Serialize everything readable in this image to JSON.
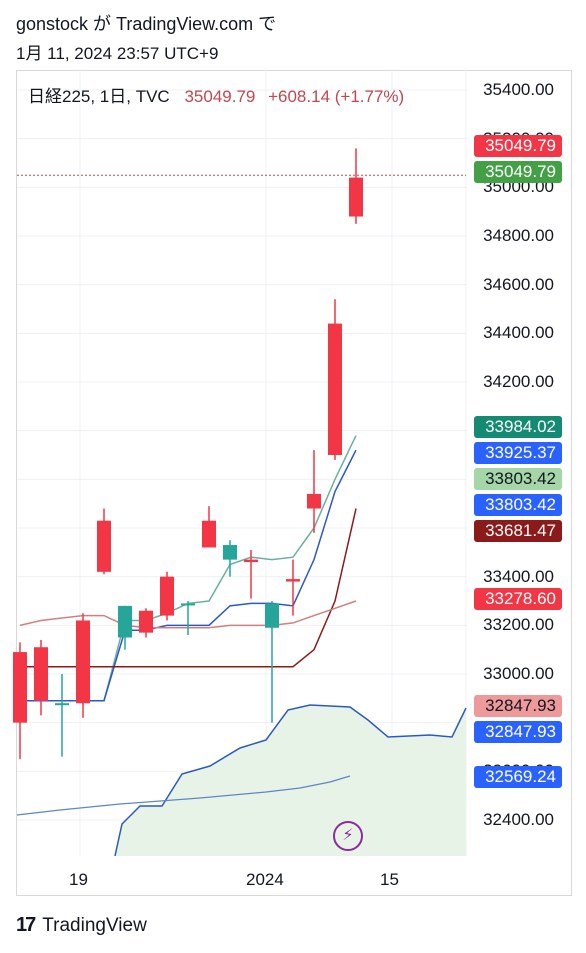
{
  "header": {
    "line1": "gonstock が TradingView.com で",
    "line2": "1月 11, 2024 23:57 UTC+9"
  },
  "legend": {
    "symbol": "日経225, 1日, TVC",
    "value": "35049.79",
    "change": "+608.14 (+1.77%)"
  },
  "footer": {
    "logo_text": "TradingView",
    "logo_icon": "tradingview-logo-icon"
  },
  "alert_icon": "bolt-icon",
  "chart_data": {
    "type": "candlestick",
    "title": "日経225, 1日, TVC",
    "ylim": [
      32240,
      35560
    ],
    "y_ticks": [
      "35400.00",
      "35200.00",
      "35000.00",
      "34800.00",
      "34600.00",
      "34400.00",
      "34200.00",
      "33400.00",
      "33200.00",
      "33000.00",
      "32600.00",
      "32400.00"
    ],
    "x_ticks": [
      "19",
      "2024",
      "15"
    ],
    "colors": {
      "up": "#26a69a",
      "down": "#f23645",
      "kumo": "#e8f3e7"
    },
    "candles": [
      {
        "o": 33090,
        "h": 33130,
        "l": 32650,
        "c": 32800
      },
      {
        "o": 33110,
        "h": 33140,
        "l": 32830,
        "c": 32890
      },
      {
        "o": 32880,
        "h": 33000,
        "l": 32660,
        "c": 32880
      },
      {
        "o": 33220,
        "h": 33250,
        "l": 32820,
        "c": 32880
      },
      {
        "o": 33630,
        "h": 33680,
        "l": 33410,
        "c": 33420
      },
      {
        "o": 33150,
        "h": 33280,
        "l": 33100,
        "c": 33280
      },
      {
        "o": 33260,
        "h": 33270,
        "l": 33150,
        "c": 33170
      },
      {
        "o": 33400,
        "h": 33420,
        "l": 33220,
        "c": 33240
      },
      {
        "o": 33290,
        "h": 33300,
        "l": 33160,
        "c": 33290
      },
      {
        "o": 33630,
        "h": 33690,
        "l": 33530,
        "c": 33520
      },
      {
        "o": 33470,
        "h": 33550,
        "l": 33400,
        "c": 33530
      },
      {
        "o": 33470,
        "h": 33510,
        "l": 33310,
        "c": 33460
      },
      {
        "o": 33190,
        "h": 33300,
        "l": 32800,
        "c": 33290
      },
      {
        "o": 33390,
        "h": 33470,
        "l": 33240,
        "c": 33380
      },
      {
        "o": 33740,
        "h": 33920,
        "l": 33580,
        "c": 33680
      },
      {
        "o": 34440,
        "h": 34540,
        "l": 33880,
        "c": 33900
      },
      {
        "o": 35040,
        "h": 35160,
        "l": 34850,
        "c": 34880
      }
    ],
    "series": [
      {
        "name": "tenkan",
        "color": "#6ab0a0",
        "values": [
          32890,
          32890,
          32890,
          32890,
          32890,
          33220,
          33220,
          33250,
          33290,
          33300,
          33450,
          33480,
          33470,
          33480,
          33600,
          33800,
          33980
        ]
      },
      {
        "name": "kijun",
        "color": "#2b59c3",
        "values": [
          32890,
          32890,
          32890,
          32890,
          32890,
          33180,
          33180,
          33200,
          33200,
          33200,
          33280,
          33290,
          33290,
          33280,
          33470,
          33750,
          33920
        ]
      },
      {
        "name": "leading",
        "color": "#8b1a1a",
        "values": [
          33030,
          33030,
          33030,
          33030,
          33030,
          33030,
          33030,
          33030,
          33030,
          33030,
          33030,
          33030,
          33030,
          33030,
          33100,
          33300,
          33680
        ]
      },
      {
        "name": "lagging",
        "color": "#d08080",
        "values": [
          33200,
          33220,
          33230,
          33240,
          33240,
          33200,
          33190,
          33190,
          33190,
          33190,
          33200,
          33200,
          33200,
          33210,
          33240,
          33270,
          33300
        ]
      }
    ],
    "last_values": [
      {
        "label": "35049.79",
        "color": "#f23645",
        "value": 35049.79
      },
      {
        "label": "35049.79",
        "color": "#43a047",
        "value": 35049.79
      },
      {
        "label": "33984.02",
        "color": "#138a72",
        "value": 33984.02
      },
      {
        "label": "33925.37",
        "color": "#2962ff",
        "value": 33925.37
      },
      {
        "label": "33803.42",
        "color": "#a5d6a7",
        "value": 33803.42
      },
      {
        "label": "33803.42",
        "color": "#2962ff",
        "value": 33803.42
      },
      {
        "label": "33681.47",
        "color": "#8b1a1a",
        "value": 33681.47
      },
      {
        "label": "33278.60",
        "color": "#f23645",
        "value": 33278.6
      },
      {
        "label": "32847.93",
        "color": "#ef9a9a",
        "value": 32847.93
      },
      {
        "label": "32847.93",
        "color": "#2962ff",
        "value": 32847.93
      },
      {
        "label": "32569.24",
        "color": "#2962ff",
        "value": 32569.24
      }
    ]
  }
}
